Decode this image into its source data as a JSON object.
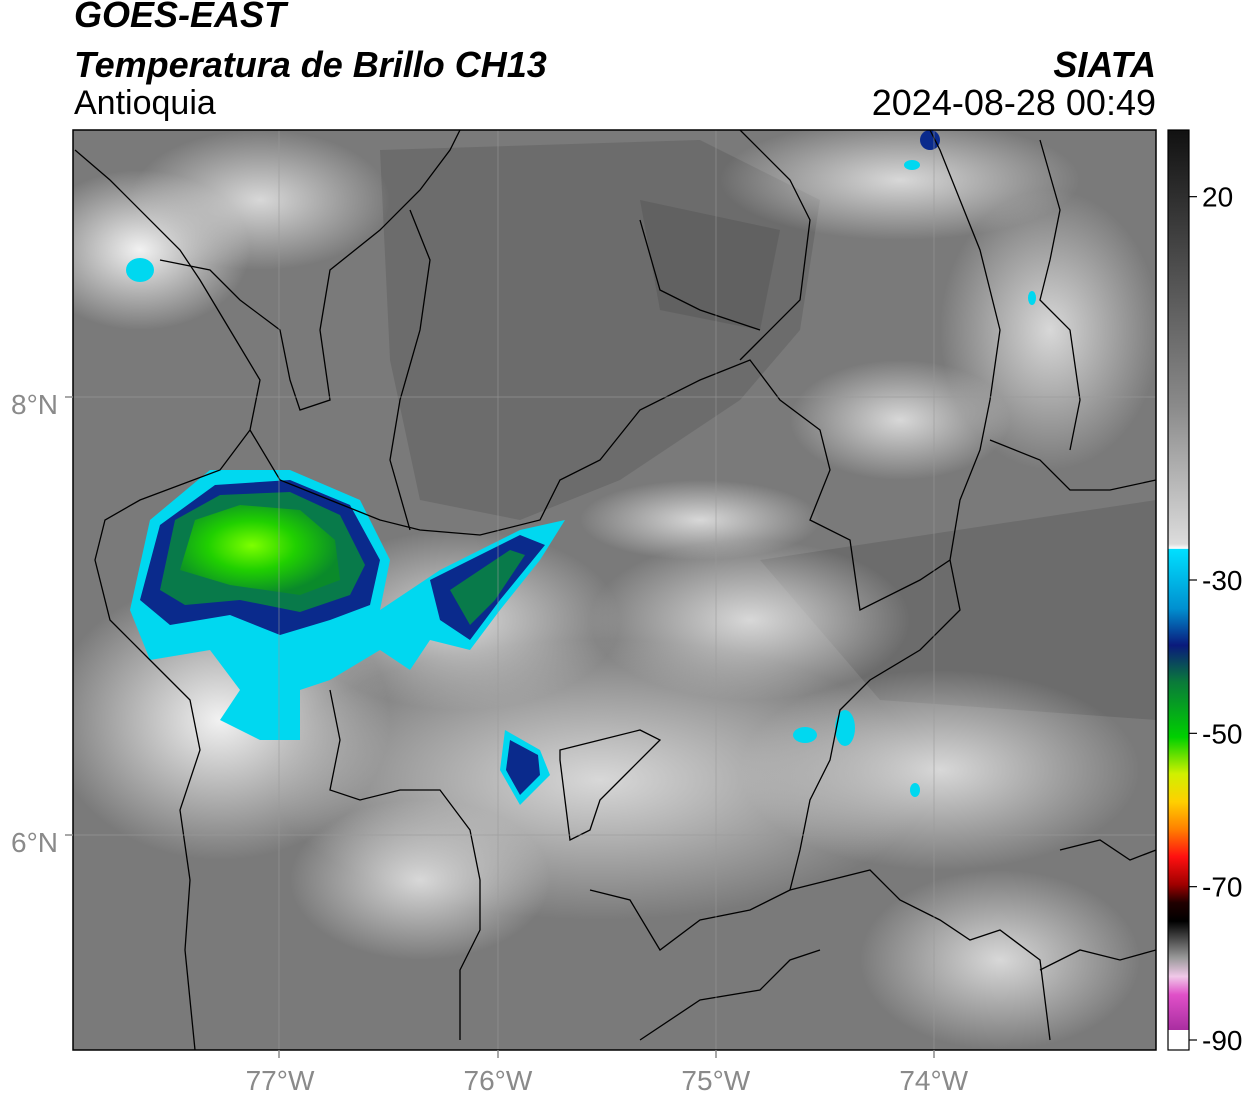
{
  "header": {
    "satellite": "GOES-EAST",
    "product": "Temperatura de Brillo CH13",
    "region": "Antioquia",
    "organization": "SIATA",
    "datetime": "2024-08-28 00:49"
  },
  "map": {
    "lon_range": [
      -77.95,
      -72.98
    ],
    "lat_range": [
      5.05,
      9.25
    ],
    "lon_ticks": [
      {
        "value": -77,
        "label": "77°W"
      },
      {
        "value": -76,
        "label": "76°W"
      },
      {
        "value": -75,
        "label": "75°W"
      },
      {
        "value": -74,
        "label": "74°W"
      }
    ],
    "lat_ticks": [
      {
        "value": 8,
        "label": "8°N"
      },
      {
        "value": 6,
        "label": "6°N"
      }
    ],
    "gridlines": true
  },
  "colorbar": {
    "range": [
      -90,
      30
    ],
    "ticks": [
      {
        "value": 20,
        "label": "20"
      },
      {
        "value": -30,
        "label": "-30"
      },
      {
        "value": -50,
        "label": "-50"
      },
      {
        "value": -70,
        "label": "-70"
      },
      {
        "value": -90,
        "label": "-90"
      }
    ],
    "colors": {
      "cyan": "#00d8f0",
      "dark_blue": "#0a2a8c",
      "green": "#00c000",
      "yellow": "#f0f000",
      "orange": "#ff8c00",
      "red": "#ff0000",
      "black": "#000000",
      "pink": "#e040c0",
      "purple": "#8c1a8c"
    }
  }
}
